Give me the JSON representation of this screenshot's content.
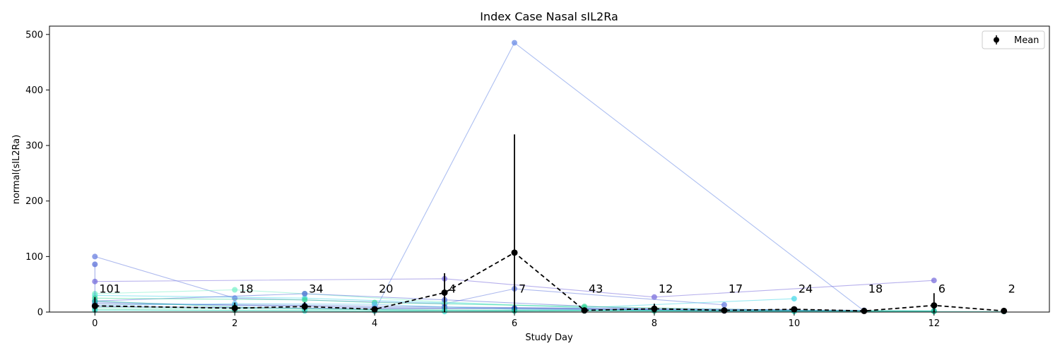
{
  "chart_data": {
    "type": "line",
    "title": "Index Case Nasal sIL2Ra",
    "xlabel": "Study Day",
    "ylabel": "normal(sIL2Ra)",
    "xlim": [
      -0.65,
      13.65
    ],
    "ylim": [
      0,
      515
    ],
    "xticks": [
      0,
      2,
      4,
      6,
      8,
      10,
      12
    ],
    "yticks": [
      0,
      100,
      200,
      300,
      400,
      500
    ],
    "grid": false,
    "legend": {
      "position": "top-right",
      "entries": [
        "Mean"
      ]
    },
    "mean_series": {
      "name": "Mean",
      "color": "#000000",
      "style": "dashed",
      "points": [
        {
          "x": 0,
          "y": 11,
          "err": 16
        },
        {
          "x": 2,
          "y": 7,
          "err": 10
        },
        {
          "x": 3,
          "y": 10,
          "err": 8
        },
        {
          "x": 4,
          "y": 5,
          "err": 4
        },
        {
          "x": 5,
          "y": 35,
          "err": 35
        },
        {
          "x": 6,
          "y": 107,
          "err": 213
        },
        {
          "x": 7,
          "y": 3,
          "err": 3
        },
        {
          "x": 8,
          "y": 6,
          "err": 9
        },
        {
          "x": 9,
          "y": 3,
          "err": 3
        },
        {
          "x": 10,
          "y": 5,
          "err": 4
        },
        {
          "x": 11,
          "y": 2,
          "err": 1
        },
        {
          "x": 12,
          "y": 12,
          "err": 22
        },
        {
          "x": 13,
          "y": 2,
          "err": 0
        }
      ]
    },
    "count_labels": [
      {
        "x": 0,
        "text": "101"
      },
      {
        "x": 2,
        "text": "18"
      },
      {
        "x": 3,
        "text": "34"
      },
      {
        "x": 4,
        "text": "20"
      },
      {
        "x": 5,
        "text": "4"
      },
      {
        "x": 6,
        "text": "7"
      },
      {
        "x": 7,
        "text": "43"
      },
      {
        "x": 8,
        "text": "12"
      },
      {
        "x": 9,
        "text": "17"
      },
      {
        "x": 10,
        "text": "24"
      },
      {
        "x": 11,
        "text": "18"
      },
      {
        "x": 12,
        "text": "6"
      },
      {
        "x": 13,
        "text": "2"
      }
    ],
    "count_label_y": 35,
    "subject_series": [
      {
        "color": "#6a8be6",
        "points": [
          [
            4,
            2
          ],
          [
            6,
            485
          ],
          [
            11,
            2
          ]
        ]
      },
      {
        "color": "#7b6fdc",
        "points": [
          [
            0,
            55
          ],
          [
            5,
            60
          ],
          [
            8,
            27
          ],
          [
            12,
            57
          ]
        ]
      },
      {
        "color": "#6a7fe0",
        "points": [
          [
            0,
            100
          ],
          [
            2,
            25
          ],
          [
            5,
            15
          ],
          [
            6,
            42
          ],
          [
            9,
            13
          ]
        ]
      },
      {
        "color": "#4ad9e8",
        "points": [
          [
            0,
            30
          ],
          [
            3,
            25
          ],
          [
            7,
            8
          ],
          [
            10,
            24
          ]
        ]
      },
      {
        "color": "#7af0c8",
        "points": [
          [
            0,
            33
          ],
          [
            2,
            40
          ],
          [
            3,
            33
          ],
          [
            5,
            18
          ],
          [
            7,
            8
          ]
        ]
      },
      {
        "color": "#5a6fd8",
        "points": [
          [
            0,
            86
          ],
          [
            0,
            20
          ],
          [
            3,
            33
          ],
          [
            5,
            22
          ],
          [
            8,
            5
          ]
        ]
      },
      {
        "color": "#3fd89a",
        "points": [
          [
            0,
            25
          ],
          [
            3,
            22
          ],
          [
            4,
            17
          ],
          [
            7,
            10
          ],
          [
            10,
            3
          ],
          [
            12,
            2
          ]
        ]
      },
      {
        "color": "#5a78d8",
        "points": [
          [
            0,
            18
          ],
          [
            2,
            12
          ],
          [
            4,
            8
          ],
          [
            6,
            6
          ],
          [
            9,
            4
          ],
          [
            11,
            3
          ]
        ]
      },
      {
        "color": "#3a5fc8",
        "points": [
          [
            0,
            15
          ],
          [
            3,
            12
          ],
          [
            5,
            9
          ],
          [
            8,
            6
          ],
          [
            10,
            4
          ]
        ]
      },
      {
        "color": "#58c0ea",
        "points": [
          [
            0,
            12
          ],
          [
            2,
            15
          ],
          [
            4,
            14
          ],
          [
            6,
            5
          ],
          [
            9,
            3
          ],
          [
            12,
            2
          ]
        ]
      },
      {
        "color": "#4cdcb0",
        "points": [
          [
            0,
            8
          ],
          [
            3,
            5
          ],
          [
            5,
            4
          ],
          [
            7,
            3
          ],
          [
            10,
            2
          ]
        ]
      },
      {
        "color": "#3cc8a0",
        "points": [
          [
            0,
            5
          ],
          [
            2,
            3
          ],
          [
            4,
            2
          ],
          [
            6,
            3
          ],
          [
            8,
            2
          ],
          [
            12,
            1
          ]
        ]
      },
      {
        "color": "#2e4bb8",
        "points": [
          [
            0,
            10
          ],
          [
            4,
            6
          ],
          [
            6,
            7
          ],
          [
            9,
            2
          ],
          [
            11,
            2
          ]
        ]
      },
      {
        "color": "#40e0d0",
        "points": [
          [
            0,
            3
          ],
          [
            3,
            2
          ],
          [
            5,
            1
          ],
          [
            7,
            2
          ],
          [
            10,
            1
          ],
          [
            13,
            1
          ]
        ]
      },
      {
        "color": "#22c0a0",
        "points": [
          [
            0,
            20
          ],
          [
            2,
            9
          ],
          [
            4,
            4
          ],
          [
            6,
            2
          ],
          [
            8,
            3
          ],
          [
            12,
            2
          ]
        ]
      }
    ]
  }
}
